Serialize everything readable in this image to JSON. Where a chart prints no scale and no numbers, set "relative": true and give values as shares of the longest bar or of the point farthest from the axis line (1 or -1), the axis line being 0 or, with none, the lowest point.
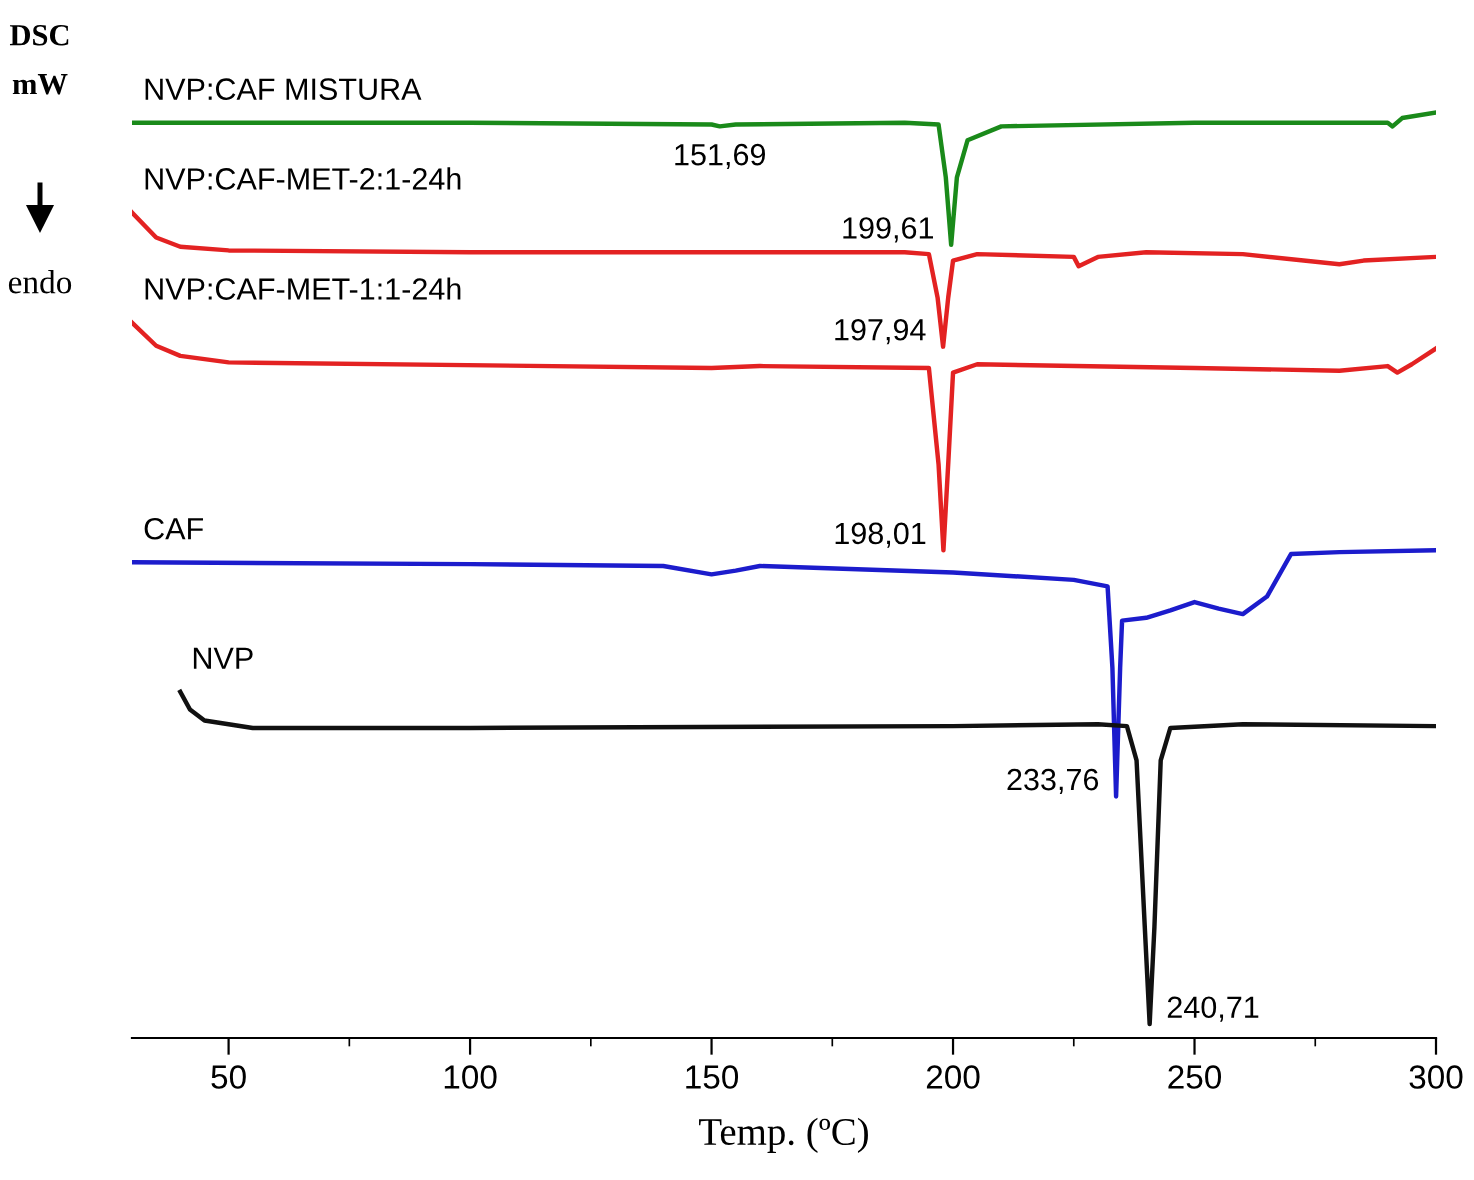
{
  "chart_data": {
    "type": "line",
    "relative": true,
    "xlabel": "Temp. (ºC)",
    "ylabel": "DSC\nmW",
    "xlim": [
      30,
      300
    ],
    "xticks": [
      50,
      {
        "value": 75,
        "label": null
      },
      100,
      {
        "value": 125,
        "label": null
      },
      150,
      {
        "value": 175,
        "label": null
      },
      200,
      {
        "value": 225,
        "label": null
      },
      250,
      {
        "value": 275,
        "label": null
      },
      300
    ],
    "grid": false,
    "legend": false,
    "marker": "none",
    "line_style": "solid",
    "series": [
      {
        "name": "NVP:CAF MISTURA",
        "color": "#1a8a1a",
        "x": [
          30,
          100,
          150,
          151.69,
          155,
          190,
          197,
          198.5,
          199.61,
          200.8,
          203,
          210,
          250,
          290,
          291,
          293,
          300
        ],
        "values": [
          0.989,
          0.989,
          0.987,
          0.985,
          0.987,
          0.989,
          0.987,
          0.93,
          0.857,
          0.93,
          0.97,
          0.985,
          0.989,
          0.989,
          0.985,
          0.994,
          1.0
        ]
      },
      {
        "name": "NVP:CAF-MET-2:1-24h",
        "color": "#e32222",
        "x": [
          30,
          35,
          40,
          50,
          100,
          190,
          195,
          196.8,
          197.94,
          199,
          200,
          205,
          225,
          226,
          230,
          240,
          260,
          280,
          285,
          300
        ],
        "values": [
          0.892,
          0.865,
          0.855,
          0.851,
          0.849,
          0.849,
          0.847,
          0.8,
          0.747,
          0.8,
          0.84,
          0.847,
          0.844,
          0.834,
          0.844,
          0.849,
          0.847,
          0.836,
          0.84,
          0.844
        ]
      },
      {
        "name": "NVP:CAF-MET-1:1-24h",
        "color": "#e32222",
        "x": [
          30,
          35,
          40,
          50,
          150,
          160,
          195,
          197,
          198.01,
          199,
          200,
          205,
          250,
          280,
          290,
          292,
          295,
          300
        ],
        "values": [
          0.773,
          0.748,
          0.737,
          0.73,
          0.724,
          0.726,
          0.724,
          0.62,
          0.527,
          0.62,
          0.719,
          0.728,
          0.724,
          0.721,
          0.726,
          0.719,
          0.728,
          0.745
        ]
      },
      {
        "name": "CAF",
        "color": "#1c1ccc",
        "x": [
          30,
          100,
          140,
          150,
          155,
          160,
          200,
          225,
          232,
          233,
          233.76,
          234.6,
          235,
          240,
          245,
          250,
          255,
          260,
          265,
          270,
          280,
          300
        ],
        "values": [
          0.514,
          0.512,
          0.51,
          0.501,
          0.505,
          0.51,
          0.503,
          0.495,
          0.488,
          0.4,
          0.261,
          0.4,
          0.451,
          0.454,
          0.462,
          0.471,
          0.464,
          0.458,
          0.477,
          0.523,
          0.525,
          0.527
        ]
      },
      {
        "name": "NVP",
        "color": "#111111",
        "x": [
          40,
          42,
          45,
          55,
          100,
          200,
          230,
          236,
          238,
          239.7,
          240.71,
          241.7,
          243,
          245,
          260,
          300
        ],
        "values": [
          0.374,
          0.355,
          0.343,
          0.335,
          0.335,
          0.337,
          0.339,
          0.337,
          0.3,
          0.12,
          0.015,
          0.12,
          0.3,
          0.335,
          0.339,
          0.337
        ]
      }
    ],
    "annotations": [
      {
        "text": "151,69",
        "x": 151.69,
        "y": 0.985
      },
      {
        "text": "199,61",
        "x": 199.61,
        "y": 0.857
      },
      {
        "text": "197,94",
        "x": 197.94,
        "y": 0.747
      },
      {
        "text": "198,01",
        "x": 198.01,
        "y": 0.527
      },
      {
        "text": "233,76",
        "x": 233.76,
        "y": 0.261
      },
      {
        "text": "240,71",
        "x": 240.71,
        "y": 0.015
      },
      "endo"
    ]
  }
}
